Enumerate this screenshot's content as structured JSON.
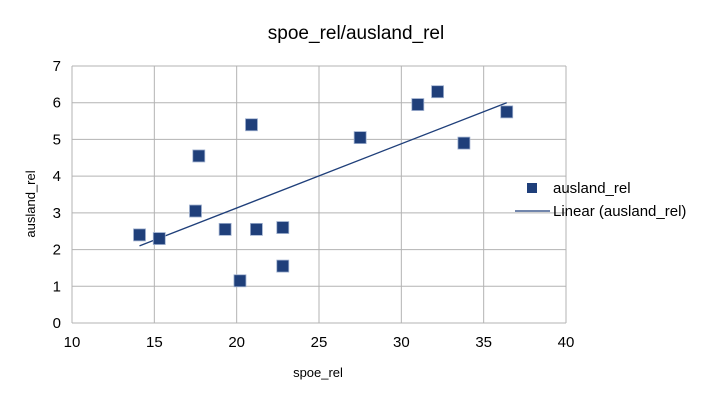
{
  "chart_data": {
    "type": "scatter",
    "title": "spoe_rel/ausland_rel",
    "xlabel": "spoe_rel",
    "ylabel": "ausland_rel",
    "xlim": [
      10,
      40
    ],
    "ylim": [
      0,
      7
    ],
    "xticks": [
      "10",
      "15",
      "20",
      "25",
      "30",
      "35",
      "40"
    ],
    "yticks": [
      "0",
      "1",
      "2",
      "3",
      "4",
      "5",
      "6",
      "7"
    ],
    "grid": true,
    "legend_position": "right",
    "series": [
      {
        "name": "ausland_rel",
        "color": "#1f3f7a",
        "marker": "square",
        "points": [
          {
            "x": 14.1,
            "y": 2.4
          },
          {
            "x": 15.3,
            "y": 2.3
          },
          {
            "x": 17.5,
            "y": 3.05
          },
          {
            "x": 17.7,
            "y": 4.55
          },
          {
            "x": 19.3,
            "y": 2.55
          },
          {
            "x": 20.2,
            "y": 1.15
          },
          {
            "x": 20.9,
            "y": 5.4
          },
          {
            "x": 21.2,
            "y": 2.55
          },
          {
            "x": 22.8,
            "y": 2.6
          },
          {
            "x": 22.8,
            "y": 1.55
          },
          {
            "x": 27.5,
            "y": 5.05
          },
          {
            "x": 31.0,
            "y": 5.95
          },
          {
            "x": 32.2,
            "y": 6.3
          },
          {
            "x": 33.8,
            "y": 4.9
          },
          {
            "x": 36.4,
            "y": 5.75
          }
        ]
      }
    ],
    "trendline": {
      "name": "Linear (ausland_rel)",
      "color": "#1f3f7a",
      "type": "linear",
      "x_start": 14.1,
      "y_start": 2.1,
      "x_end": 36.4,
      "y_end": 6.0
    }
  }
}
